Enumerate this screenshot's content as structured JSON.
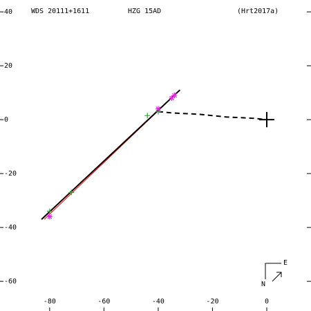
{
  "chart_data": {
    "type": "orbit",
    "header": [
      "WDS 20111+1611",
      "HZG  15AD",
      "(Hrt2017a)"
    ],
    "compass": [
      "N",
      "E"
    ],
    "xlim": [
      -98.3,
      16.3
    ],
    "ylim": [
      -71,
      44.4
    ],
    "xticks": [
      -80,
      -60,
      -40,
      -20,
      0
    ],
    "yticks": [
      40,
      20,
      0,
      -20,
      -40,
      -60
    ],
    "grid": false,
    "series": [
      {
        "color": "#ff0000",
        "style": "solid",
        "x": [
          -82,
          -33
        ],
        "values": [
          -37,
          10
        ]
      },
      {
        "color": "#000000",
        "style": "solid",
        "x": [
          -83,
          -32
        ],
        "values": [
          -37,
          11
        ]
      },
      {
        "color": "#000000",
        "style": "dashed",
        "x": [
          -40,
          -35,
          -25,
          -15,
          -5,
          0
        ],
        "values": [
          3,
          2.5,
          2,
          1,
          0.5,
          0
        ]
      },
      {
        "color": "#22aa22",
        "style": "plus",
        "x": [
          -80,
          -72,
          -44,
          -40
        ],
        "values": [
          -34,
          -27,
          1.5,
          3
        ]
      },
      {
        "color": "#ee22ee",
        "style": "star",
        "x": [
          -80,
          -40,
          -35,
          -34
        ],
        "values": [
          -36,
          4,
          8,
          9
        ]
      },
      {
        "color": "#000000",
        "style": "cross",
        "x": [
          0
        ],
        "values": [
          0
        ]
      }
    ]
  }
}
